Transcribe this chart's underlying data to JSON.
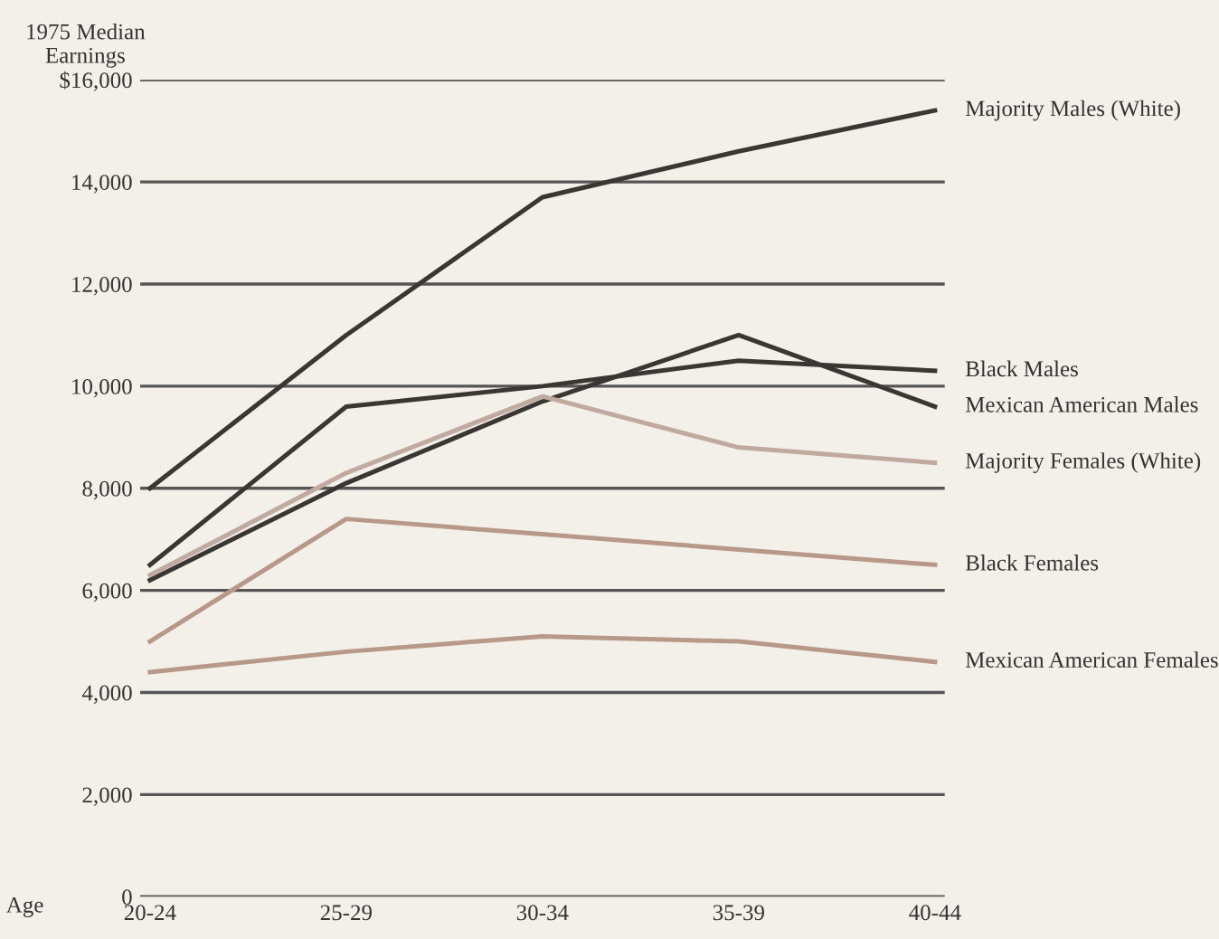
{
  "chart_data": {
    "type": "line",
    "ylabel": "1975 Median Earnings",
    "xlabel": "Age",
    "categories": [
      "20-24",
      "25-29",
      "30-34",
      "35-39",
      "40-44"
    ],
    "series": [
      {
        "name": "Majority Males (White)",
        "color": "#3a3634",
        "values": [
          8000,
          11000,
          13700,
          14600,
          15400
        ]
      },
      {
        "name": "Black Males",
        "color": "#3a3634",
        "values": [
          6500,
          9600,
          10000,
          10500,
          10300
        ]
      },
      {
        "name": "Mexican American Males",
        "color": "#3a3634",
        "values": [
          6200,
          8100,
          9700,
          11000,
          9600
        ]
      },
      {
        "name": "Majority Females (White)",
        "color": "#c0aaa0",
        "values": [
          6300,
          8300,
          9800,
          8800,
          8500
        ]
      },
      {
        "name": "Black Females",
        "color": "#b89888",
        "values": [
          5000,
          7400,
          7100,
          6800,
          6500
        ]
      },
      {
        "name": "Mexican American Females",
        "color": "#b89888",
        "values": [
          4400,
          4800,
          5100,
          5000,
          4600
        ]
      }
    ],
    "ylim": [
      0,
      16000
    ],
    "yticks": [
      0,
      {
        "value": 2000,
        "label": "2,000"
      },
      {
        "value": 4000,
        "label": "4,000"
      },
      {
        "value": 6000,
        "label": "6,000"
      },
      {
        "value": 8000,
        "label": "8,000"
      },
      {
        "value": 10000,
        "label": "10,000"
      },
      {
        "value": 12000,
        "label": "12,000"
      },
      {
        "value": 14000,
        "label": "14,000"
      },
      {
        "value": 16000,
        "label": "$16,000"
      }
    ],
    "grid": "y",
    "legend": false
  }
}
